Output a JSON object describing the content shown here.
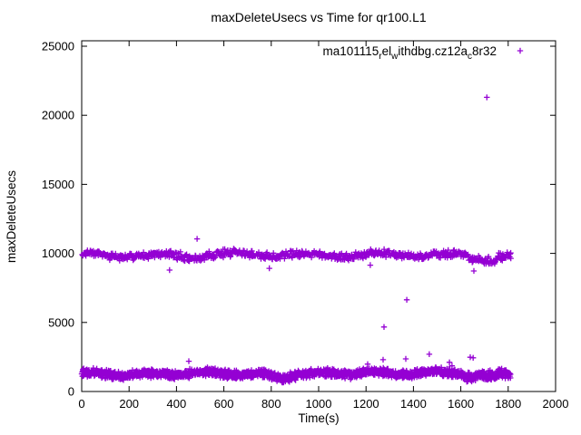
{
  "window": {
    "background": "#ffffff",
    "foreground": "#000000"
  },
  "chart_data": {
    "type": "scatter",
    "title": "maxDeleteUsecs vs Time for qr100.L1",
    "xlabel": "Time(s)",
    "ylabel": "maxDeleteUsecs",
    "xlim": [
      0,
      2000
    ],
    "ylim": [
      0,
      25000
    ],
    "xticks": [
      0,
      200,
      400,
      600,
      800,
      1000,
      1200,
      1400,
      1600,
      1800,
      2000
    ],
    "yticks": [
      0,
      5000,
      10000,
      15000,
      20000,
      25000
    ],
    "grid": false,
    "border_color": "#000000",
    "marker": {
      "shape": "plus",
      "size": 7,
      "color": "#9400D3"
    },
    "legend": {
      "position": "top-right-inside",
      "label_plain": "ma101115_rel_withdbg.cz12a_c8r32",
      "label_segments": [
        {
          "text": "ma101115",
          "sub": false
        },
        {
          "text": "r",
          "sub": true
        },
        {
          "text": "el",
          "sub": false
        },
        {
          "text": "w",
          "sub": true
        },
        {
          "text": "ithdbg.cz12a",
          "sub": false
        },
        {
          "text": "c",
          "sub": true
        },
        {
          "text": "8r32",
          "sub": false
        }
      ]
    },
    "seed": 1234567,
    "series": [
      {
        "name": "ma101115_rel_withdbg.cz12a_c8r32",
        "bands": [
          {
            "label": "upper-band-around-10000",
            "count": 750,
            "x_start": 2,
            "x_end": 1812,
            "center": 9880,
            "noise": 330,
            "wave_amp": 110,
            "wave_period": 310,
            "wave_phase": 1.3,
            "clamp": [
              9250,
              10560
            ],
            "dips": [
              {
                "from": 420,
                "to": 530,
                "offset": -140
              },
              {
                "from": 1630,
                "to": 1750,
                "offset": -260
              }
            ]
          },
          {
            "label": "lower-band-around-1200",
            "count": 1800,
            "x_start": 1,
            "x_end": 1810,
            "center": 1280,
            "noise": 380,
            "wave_amp": 90,
            "wave_period": 240,
            "wave_phase": 0.4,
            "clamp": [
              640,
              2040
            ],
            "dips": [
              {
                "from": 790,
                "to": 880,
                "offset": -200
              },
              {
                "from": 1610,
                "to": 1755,
                "offset": -220
              },
              {
                "from": 1150,
                "to": 1600,
                "offset": 70
              }
            ]
          }
        ],
        "outliers": [
          [
            1710,
            21300
          ],
          [
            487,
            11050
          ],
          [
            371,
            8790
          ],
          [
            792,
            8920
          ],
          [
            1655,
            8730
          ],
          [
            1218,
            9150
          ],
          [
            1372,
            6640
          ],
          [
            1276,
            4670
          ],
          [
            452,
            2190
          ],
          [
            1207,
            1980
          ],
          [
            1272,
            2300
          ],
          [
            1368,
            2360
          ],
          [
            1467,
            2700
          ],
          [
            1552,
            2110
          ],
          [
            1563,
            1860
          ],
          [
            1640,
            2480
          ],
          [
            1652,
            2440
          ]
        ]
      }
    ]
  }
}
